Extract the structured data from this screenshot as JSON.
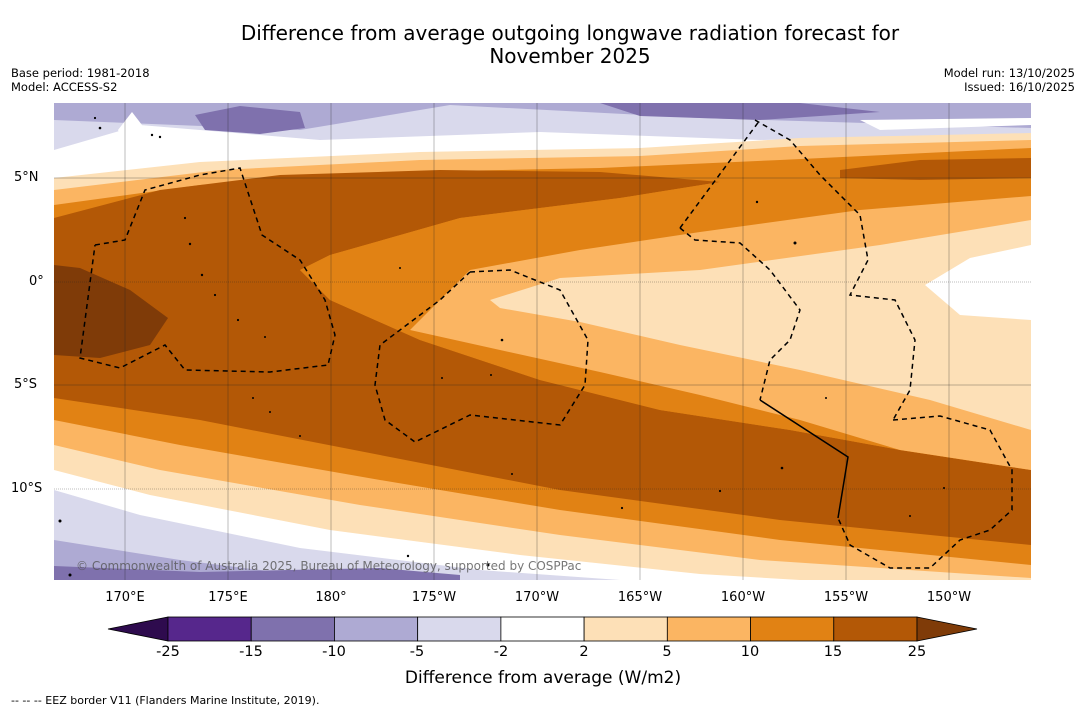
{
  "title_line1": "Difference from average outgoing longwave radiation forecast for",
  "title_line2": "November 2025",
  "base_period": "Base period: 1981-2018",
  "model": "Model: ACCESS-S2",
  "model_run": "Model run: 13/10/2025",
  "issued": "Issued: 16/10/2025",
  "lat_ticks": [
    "5°N",
    "0°",
    "5°S",
    "10°S"
  ],
  "lon_ticks": [
    "170°E",
    "175°E",
    "180°",
    "175°W",
    "170°W",
    "165°W",
    "160°W",
    "155°W",
    "150°W"
  ],
  "copyright": "© Commonwealth of Australia 2025, Bureau of Meteorology, supported by COSPPac",
  "colorbar": {
    "labels": [
      "-25",
      "-15",
      "-10",
      "-5",
      "-2",
      "2",
      "5",
      "10",
      "15",
      "25"
    ],
    "colors": [
      "#56278c",
      "#7f71ad",
      "#aeaad3",
      "#d9d9ec",
      "#ffffff",
      "#fde0b7",
      "#fbb562",
      "#e18214",
      "#b35806"
    ],
    "extend_low_color": "#2e0b4e",
    "extend_high_color": "#7f3b08",
    "title": "Difference from average (W/m2)"
  },
  "footer": "--  --  -- EEZ border V11 (Flanders Marine Institute, 2019)."
}
